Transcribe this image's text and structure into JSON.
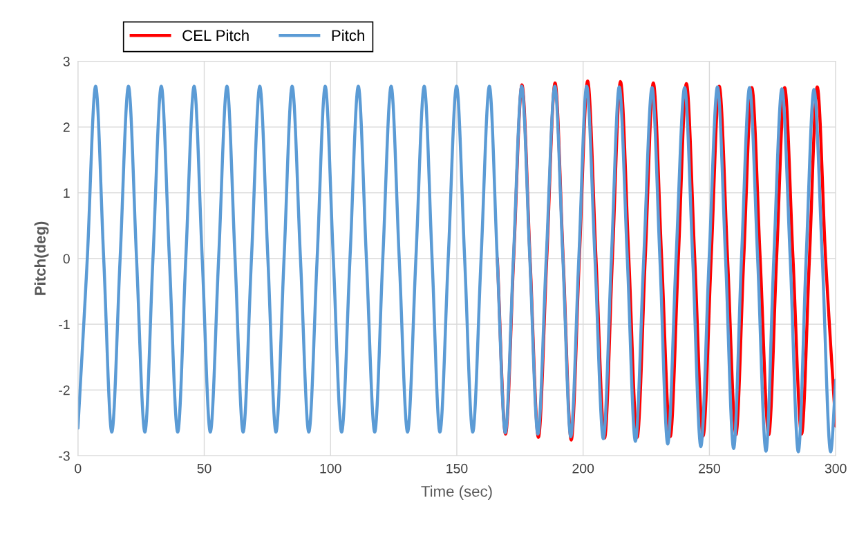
{
  "chart_data": {
    "type": "line",
    "xlabel": "Time (sec)",
    "ylabel": "Pitch(deg)",
    "xlim": [
      0,
      300
    ],
    "xticks": [
      0,
      50,
      100,
      150,
      200,
      250,
      300
    ],
    "ylim": [
      -3,
      3
    ],
    "yticks": [
      -3,
      -2,
      -1,
      0,
      1,
      2,
      3
    ],
    "grid": true,
    "legend": "top left",
    "marker": "none",
    "line_style": "solid",
    "series": [
      {
        "name": "CEL Pitch",
        "color": "#ff0000",
        "x": [
          166.05,
          169.3,
          172.5,
          175.8,
          179.0,
          182.3,
          185.6,
          188.9,
          192.1,
          195.3,
          198.5,
          201.8,
          205.1,
          208.5,
          211.6,
          214.8,
          218.1,
          221.4,
          224.6,
          227.8,
          231.1,
          234.5,
          237.7,
          240.9,
          244.2,
          247.5,
          250.7,
          253.9,
          257.2,
          260.5,
          263.6,
          266.8,
          270.1,
          273.5,
          276.6,
          279.8,
          283.1,
          286.5,
          289.6,
          292.7,
          296.0,
          300
        ],
        "values": [
          0,
          -2.67,
          0,
          2.64,
          0,
          -2.72,
          0,
          2.67,
          0,
          -2.76,
          0,
          2.7,
          0,
          -2.73,
          0,
          2.69,
          0,
          -2.72,
          0,
          2.67,
          0,
          -2.71,
          0,
          2.66,
          0,
          -2.7,
          0,
          2.62,
          0,
          -2.68,
          0,
          2.6,
          0,
          -2.68,
          0,
          2.6,
          0,
          -2.67,
          0,
          2.61,
          0,
          -2.55
        ]
      },
      {
        "name": "Pitch",
        "color": "#5b9bd5",
        "x": [
          0,
          3.7,
          7.0,
          10.2,
          13.4,
          16.7,
          20.0,
          23.2,
          26.5,
          29.7,
          33.0,
          36.2,
          39.5,
          42.7,
          46.0,
          49.2,
          52.4,
          55.7,
          59.0,
          62.2,
          65.4,
          68.7,
          72.0,
          75.2,
          78.4,
          81.6,
          84.8,
          88.1,
          91.4,
          94.7,
          97.9,
          101.1,
          104.4,
          107.7,
          111.0,
          114.2,
          117.5,
          120.7,
          124.0,
          127.2,
          130.5,
          133.8,
          137.1,
          140.2,
          143.3,
          146.6,
          149.9,
          153.1,
          156.3,
          159.6,
          162.9,
          166.0,
          169.2,
          172.4,
          175.7,
          178.9,
          182.1,
          185.4,
          188.8,
          192.0,
          195.1,
          198.3,
          201.4,
          204.7,
          208.0,
          211.2,
          214.3,
          217.5,
          220.7,
          224.0,
          227.3,
          230.4,
          233.5,
          236.8,
          240.2,
          243.4,
          246.6,
          249.9,
          253.2,
          256.4,
          259.6,
          262.7,
          265.9,
          269.1,
          272.4,
          275.5,
          278.7,
          282.0,
          285.2,
          288.3,
          291.4,
          294.7,
          298.0,
          300
        ],
        "values": [
          -2.58,
          0,
          2.62,
          0,
          -2.64,
          0,
          2.62,
          0,
          -2.64,
          0,
          2.62,
          0,
          -2.64,
          0,
          2.62,
          0,
          -2.64,
          0,
          2.62,
          0,
          -2.64,
          0,
          2.62,
          0,
          -2.64,
          0,
          2.62,
          0,
          -2.64,
          0,
          2.62,
          0,
          -2.64,
          0,
          2.62,
          0,
          -2.64,
          0,
          2.62,
          0,
          -2.64,
          0,
          2.62,
          0,
          -2.64,
          0,
          2.62,
          0,
          -2.64,
          0,
          2.62,
          0,
          -2.65,
          0,
          2.62,
          0,
          -2.67,
          0,
          2.62,
          0,
          -2.71,
          0,
          2.62,
          0,
          -2.74,
          0,
          2.61,
          0,
          -2.78,
          0,
          2.6,
          0,
          -2.82,
          0,
          2.6,
          0,
          -2.86,
          0,
          2.61,
          0,
          -2.89,
          0,
          2.6,
          0,
          -2.93,
          0,
          2.58,
          0,
          -2.94,
          0,
          2.57,
          0,
          -2.94,
          -1.85
        ]
      }
    ]
  }
}
